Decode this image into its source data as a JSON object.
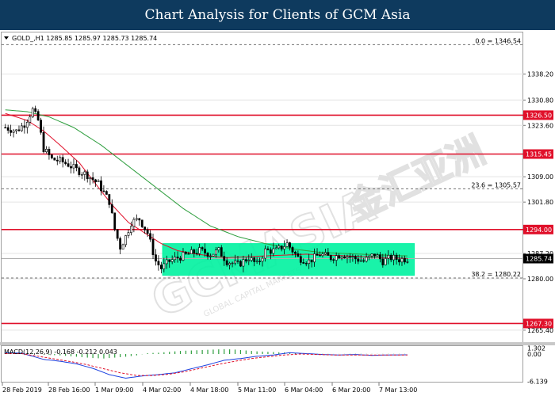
{
  "header": {
    "title": "Chart Analysis for Clients of GCM Asia"
  },
  "chart_data": {
    "type": "candlestick",
    "symbol_info": "GOLD_,H1  1285.85 1285.97 1285.73 1285.74",
    "watermark": "GCMASIA",
    "watermark_cn": "金汇亚洲",
    "watermark_sub": "GLOBAL CAPITAL MARKETS",
    "ylim": [
      1262,
      1350
    ],
    "y_ticks": [
      "1338.20",
      "1330.80",
      "1323.60",
      "1309.00",
      "1301.80",
      "1287.20",
      "1280.00",
      "1265.40"
    ],
    "x_ticks": [
      "28 Feb 2019",
      "28 Feb 16:00",
      "1 Mar 09:00",
      "4 Mar 02:00",
      "4 Mar 18:00",
      "5 Mar 11:00",
      "6 Mar 04:00",
      "6 Mar 20:00",
      "7 Mar 13:00"
    ],
    "current_price": {
      "value": 1285.74,
      "label": "1285.74"
    },
    "levels": [
      {
        "value": 1326.5,
        "label": "1326.50",
        "color": "#e0102a"
      },
      {
        "value": 1315.45,
        "label": "1315.45",
        "color": "#e0102a"
      },
      {
        "value": 1294.0,
        "label": "1294.00",
        "color": "#e0102a"
      },
      {
        "value": 1267.3,
        "label": "1267.30",
        "color": "#e0102a"
      }
    ],
    "fib_levels": [
      {
        "value": 1346.54,
        "label": "0.0 = 1346.54"
      },
      {
        "value": 1305.57,
        "label": "23.6 = 1305.57"
      },
      {
        "value": 1280.22,
        "label": "38.2 = 1280.22"
      }
    ],
    "consolidation_box": {
      "from_bar": 58,
      "to_bar": 149,
      "top": 1290.0,
      "bottom": 1281.0,
      "color": "#00f2a0"
    },
    "price_path": [
      [
        0,
        1323.0
      ],
      [
        4,
        1322.0
      ],
      [
        7,
        1324.0
      ],
      [
        10,
        1328.0
      ],
      [
        12,
        1325.0
      ],
      [
        14,
        1317.0
      ],
      [
        17,
        1314.0
      ],
      [
        20,
        1313.5
      ],
      [
        23,
        1312.5
      ],
      [
        26,
        1311.0
      ],
      [
        30,
        1309.5
      ],
      [
        34,
        1307.0
      ],
      [
        38,
        1302.0
      ],
      [
        40,
        1294.0
      ],
      [
        42,
        1289.0
      ],
      [
        44,
        1292.0
      ],
      [
        46,
        1296.0
      ],
      [
        49,
        1297.0
      ],
      [
        52,
        1293.0
      ],
      [
        55,
        1285.0
      ],
      [
        57,
        1283.0
      ],
      [
        60,
        1285.0
      ],
      [
        63,
        1286.0
      ],
      [
        67,
        1287.0
      ],
      [
        71,
        1288.0
      ],
      [
        75,
        1287.0
      ],
      [
        78,
        1288.0
      ],
      [
        81,
        1285.0
      ],
      [
        85,
        1284.0
      ],
      [
        89,
        1286.0
      ],
      [
        92,
        1284.0
      ],
      [
        95,
        1288.0
      ],
      [
        99,
        1288.0
      ],
      [
        103,
        1290.0
      ],
      [
        107,
        1286.0
      ],
      [
        111,
        1285.0
      ],
      [
        115,
        1287.0
      ],
      [
        119,
        1286.0
      ],
      [
        123,
        1287.0
      ],
      [
        127,
        1286.0
      ],
      [
        131,
        1285.0
      ],
      [
        135,
        1287.0
      ],
      [
        138,
        1285.0
      ],
      [
        141,
        1286.0
      ],
      [
        144,
        1285.5
      ],
      [
        147,
        1285.74
      ]
    ],
    "ma_red": [
      [
        0,
        1327.0
      ],
      [
        8,
        1325.0
      ],
      [
        14,
        1322.0
      ],
      [
        20,
        1318.0
      ],
      [
        27,
        1313.0
      ],
      [
        33,
        1307.0
      ],
      [
        39,
        1301.0
      ],
      [
        45,
        1296.0
      ],
      [
        51,
        1293.0
      ],
      [
        57,
        1290.0
      ],
      [
        63,
        1288.0
      ],
      [
        70,
        1287.0
      ],
      [
        80,
        1286.0
      ],
      [
        95,
        1286.5
      ],
      [
        110,
        1287.0
      ],
      [
        125,
        1286.5
      ],
      [
        140,
        1286.0
      ],
      [
        147,
        1285.8
      ]
    ],
    "ma_green": [
      [
        0,
        1328.0
      ],
      [
        8,
        1327.5
      ],
      [
        16,
        1326.0
      ],
      [
        25,
        1323.0
      ],
      [
        35,
        1318.0
      ],
      [
        45,
        1312.0
      ],
      [
        55,
        1306.0
      ],
      [
        65,
        1300.0
      ],
      [
        75,
        1295.0
      ],
      [
        85,
        1292.0
      ],
      [
        95,
        1290.0
      ],
      [
        105,
        1288.5
      ],
      [
        115,
        1287.5
      ],
      [
        130,
        1287.0
      ],
      [
        147,
        1286.5
      ]
    ],
    "macd": {
      "label": "MACD(12,26,9) -0.168 -0.212 0.043",
      "ylim": [
        -6.2,
        1.6
      ],
      "y_ticks": [
        "1.302",
        "0.00",
        "-6.139"
      ],
      "line": [
        [
          0,
          0.3
        ],
        [
          6,
          0.2
        ],
        [
          10,
          -0.5
        ],
        [
          14,
          -1.2
        ],
        [
          20,
          -1.6
        ],
        [
          26,
          -2.2
        ],
        [
          32,
          -3.2
        ],
        [
          38,
          -4.6
        ],
        [
          44,
          -5.4
        ],
        [
          50,
          -4.9
        ],
        [
          56,
          -4.6
        ],
        [
          62,
          -4.2
        ],
        [
          68,
          -3.3
        ],
        [
          74,
          -2.4
        ],
        [
          80,
          -1.4
        ],
        [
          86,
          -1.0
        ],
        [
          92,
          -0.5
        ],
        [
          98,
          -0.2
        ],
        [
          104,
          0.3
        ],
        [
          110,
          0.1
        ],
        [
          116,
          -0.1
        ],
        [
          122,
          -0.2
        ],
        [
          128,
          -0.1
        ],
        [
          134,
          -0.3
        ],
        [
          140,
          -0.2
        ],
        [
          147,
          -0.17
        ]
      ],
      "signal": [
        [
          0,
          0.1
        ],
        [
          6,
          0.1
        ],
        [
          12,
          -0.5
        ],
        [
          18,
          -1.1
        ],
        [
          24,
          -1.7
        ],
        [
          30,
          -2.4
        ],
        [
          36,
          -3.3
        ],
        [
          42,
          -4.2
        ],
        [
          48,
          -4.8
        ],
        [
          54,
          -4.8
        ],
        [
          60,
          -4.5
        ],
        [
          66,
          -3.9
        ],
        [
          72,
          -3.1
        ],
        [
          78,
          -2.3
        ],
        [
          84,
          -1.6
        ],
        [
          90,
          -1.0
        ],
        [
          96,
          -0.6
        ],
        [
          102,
          -0.2
        ],
        [
          108,
          0.0
        ],
        [
          114,
          -0.1
        ],
        [
          120,
          -0.2
        ],
        [
          126,
          -0.2
        ],
        [
          132,
          -0.2
        ],
        [
          138,
          -0.2
        ],
        [
          147,
          -0.21
        ]
      ],
      "histogram": [
        [
          0,
          0.2
        ],
        [
          4,
          0.3
        ],
        [
          8,
          0.25
        ],
        [
          12,
          0.1
        ],
        [
          16,
          -0.2
        ],
        [
          20,
          -0.3
        ],
        [
          24,
          -0.5
        ],
        [
          28,
          -0.7
        ],
        [
          32,
          -0.9
        ],
        [
          36,
          -1.0
        ],
        [
          40,
          -0.8
        ],
        [
          44,
          -0.6
        ],
        [
          48,
          -0.3
        ],
        [
          52,
          0.2
        ],
        [
          56,
          0.3
        ],
        [
          60,
          0.5
        ],
        [
          64,
          0.7
        ],
        [
          68,
          0.8
        ],
        [
          72,
          0.9
        ],
        [
          76,
          1.0
        ],
        [
          80,
          1.1
        ],
        [
          84,
          1.0
        ],
        [
          88,
          0.8
        ],
        [
          92,
          0.6
        ],
        [
          96,
          0.5
        ],
        [
          100,
          0.4
        ],
        [
          104,
          0.3
        ],
        [
          108,
          0.2
        ],
        [
          112,
          0.1
        ],
        [
          116,
          0.05
        ],
        [
          120,
          0.02
        ],
        [
          124,
          0.03
        ],
        [
          128,
          0.06
        ],
        [
          132,
          0.04
        ],
        [
          136,
          0.03
        ],
        [
          140,
          0.04
        ],
        [
          144,
          0.04
        ],
        [
          147,
          0.043
        ]
      ]
    }
  }
}
